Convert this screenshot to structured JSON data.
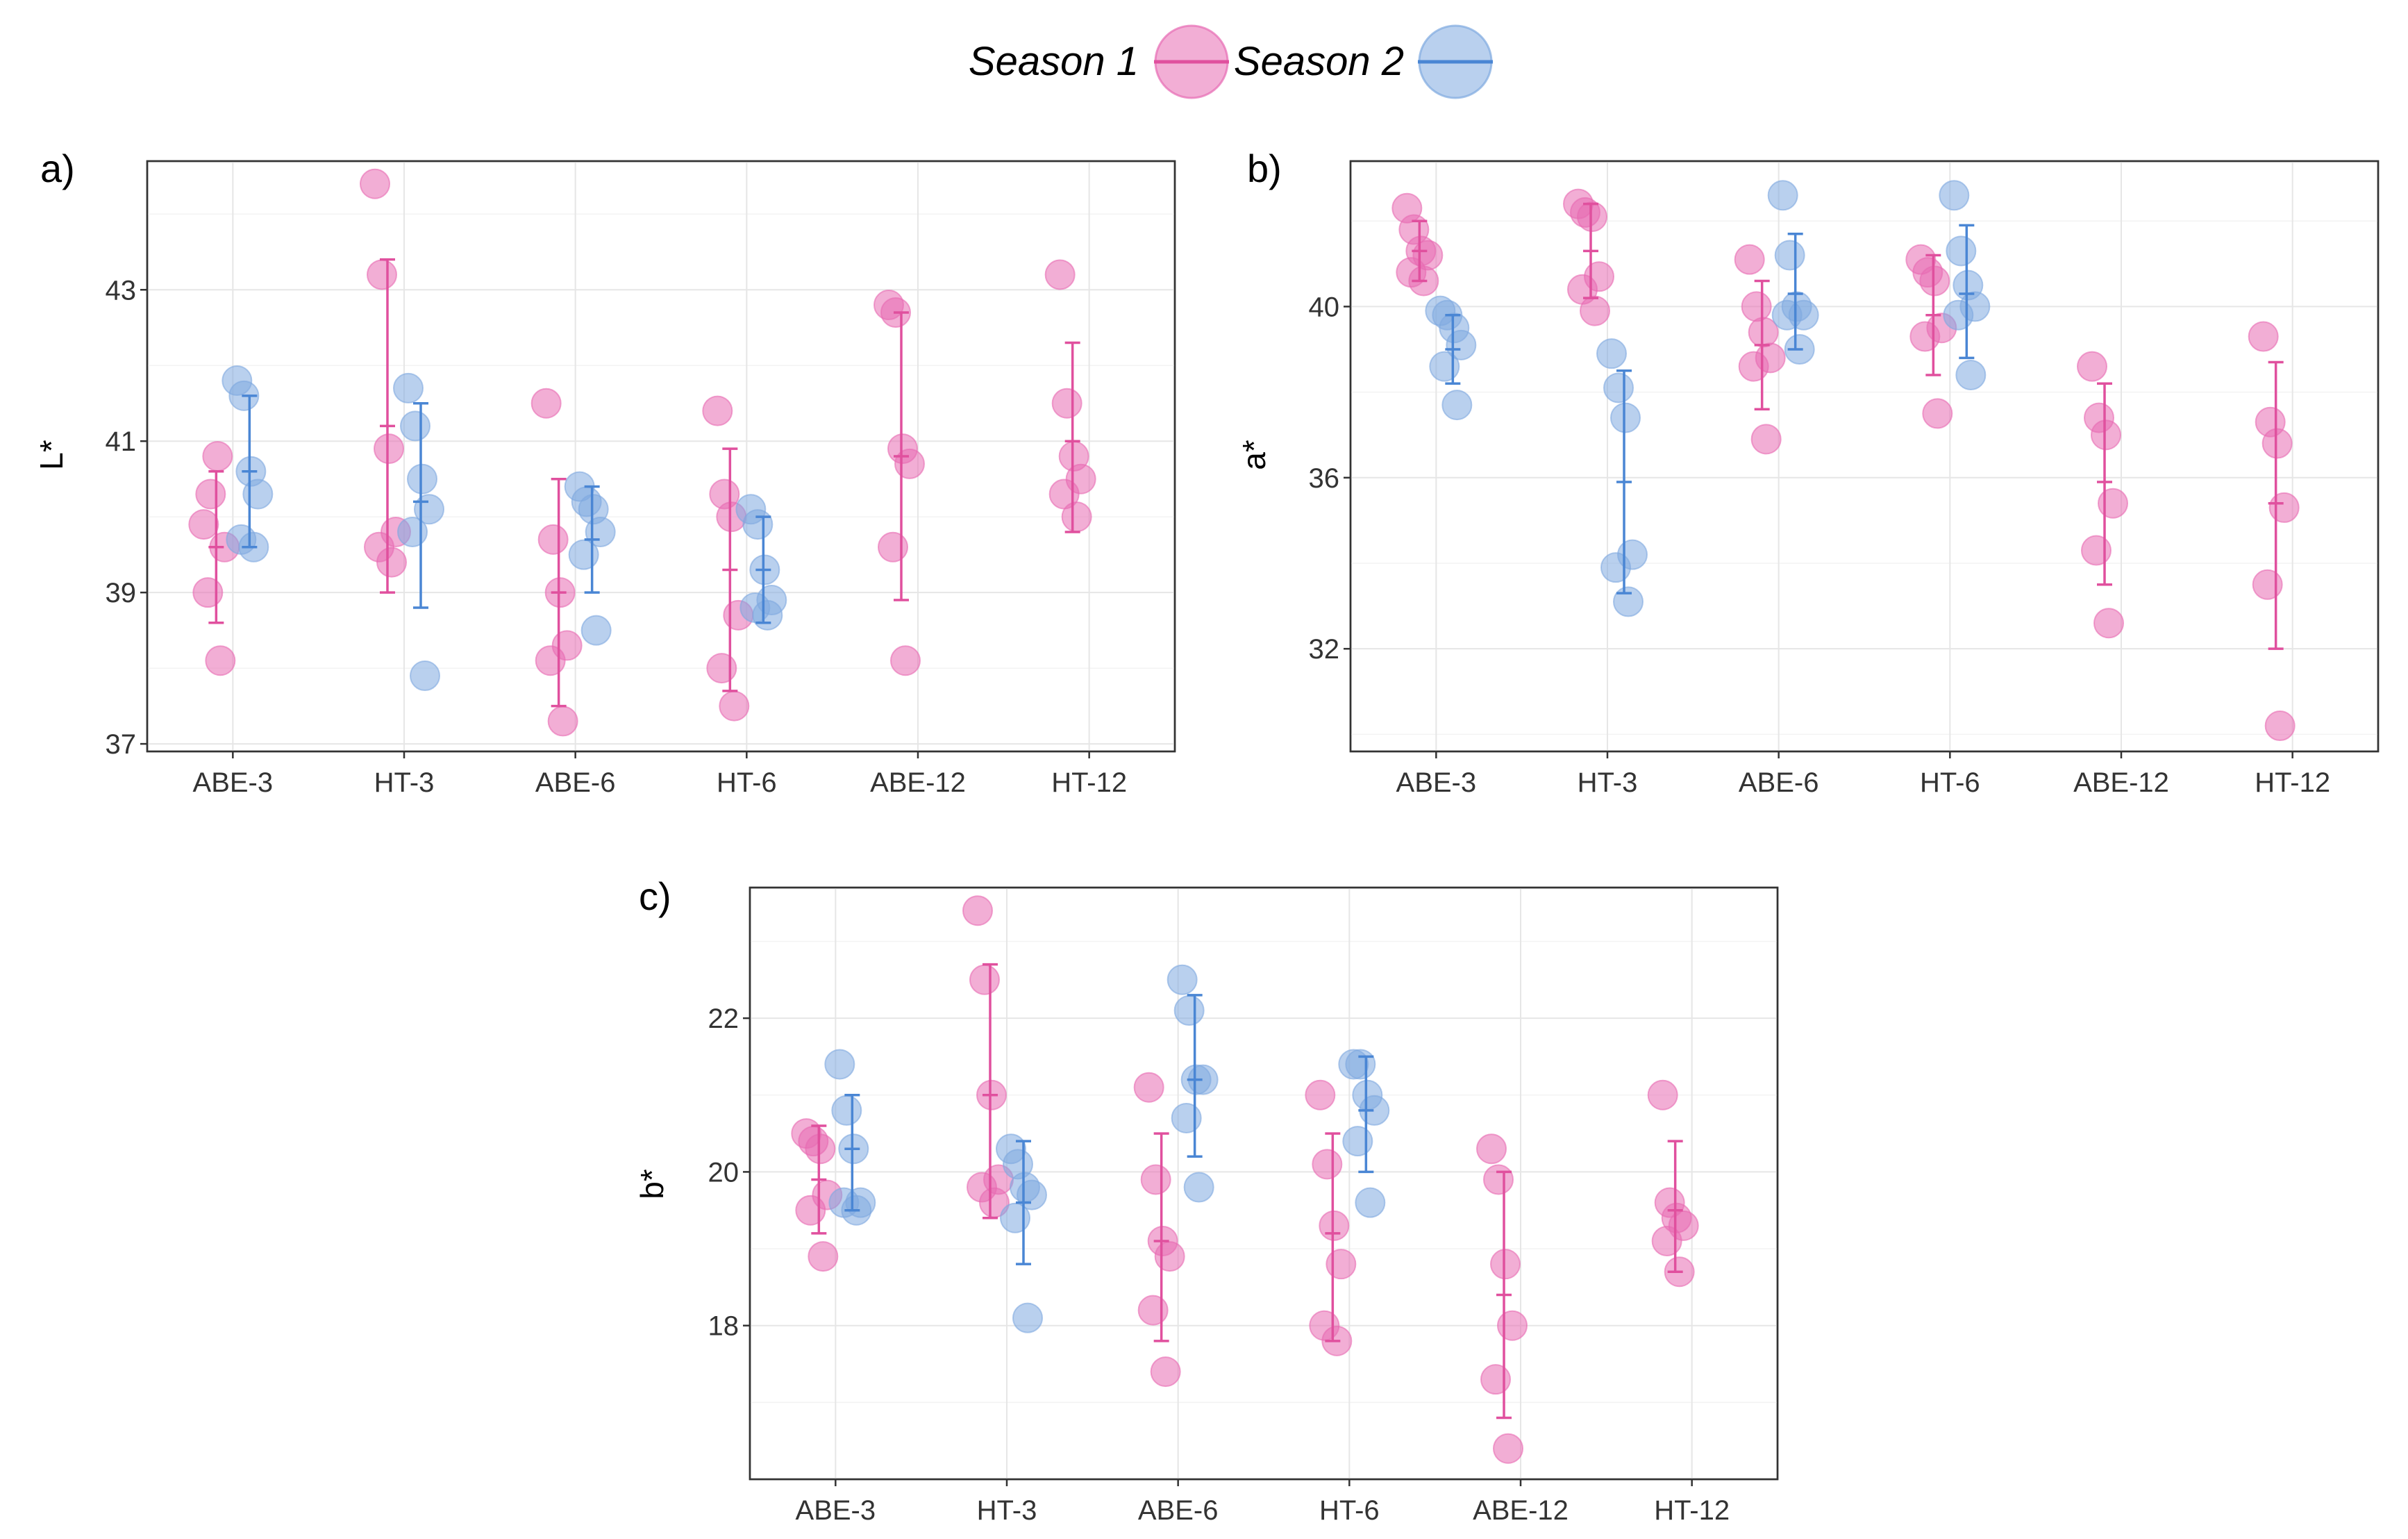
{
  "legend": {
    "items": [
      {
        "label": "Season 1",
        "color": "#e76bb3"
      },
      {
        "label": "Season 2",
        "color": "#7fa9e0"
      }
    ]
  },
  "chart_data": [
    {
      "panel": "a)",
      "type": "scatter",
      "ylabel": "L*",
      "categories": [
        "ABE-3",
        "HT-3",
        "ABE-6",
        "HT-6",
        "ABE-12",
        "HT-12"
      ],
      "ylim": [
        36.9,
        44.7
      ],
      "yticks": [
        37,
        39,
        41,
        43
      ],
      "series": [
        {
          "name": "Season 1",
          "color": "#e76bb3",
          "points": [
            [
              39.9,
              40.3,
              40.8,
              39.6,
              39.0,
              38.1
            ],
            [
              44.4,
              43.2,
              40.9,
              39.8,
              39.6,
              39.4
            ],
            [
              41.5,
              39.7,
              39.0,
              38.3,
              38.1,
              37.3
            ],
            [
              41.4,
              40.3,
              40.0,
              38.7,
              38.0,
              37.5
            ],
            [
              42.8,
              42.7,
              40.9,
              40.7,
              39.6,
              38.1
            ],
            [
              43.2,
              41.5,
              40.8,
              40.5,
              40.3,
              40.0
            ]
          ],
          "mean": [
            39.6,
            41.2,
            39.0,
            39.3,
            40.8,
            41.0
          ],
          "error": [
            [
              38.6,
              40.6
            ],
            [
              39.0,
              43.4
            ],
            [
              37.5,
              40.5
            ],
            [
              37.7,
              40.9
            ],
            [
              38.9,
              42.7
            ],
            [
              39.8,
              42.3
            ]
          ]
        },
        {
          "name": "Season 2",
          "color": "#7fa9e0",
          "points": [
            [
              41.8,
              41.6,
              40.6,
              40.3,
              39.7,
              39.6
            ],
            [
              41.7,
              41.2,
              40.5,
              40.1,
              39.8,
              37.9
            ],
            [
              40.4,
              40.2,
              40.1,
              39.8,
              39.5,
              38.5
            ],
            [
              40.1,
              39.9,
              39.3,
              38.9,
              38.8,
              38.7
            ],
            [],
            []
          ],
          "mean": [
            40.6,
            40.2,
            39.7,
            39.3,
            null,
            null
          ],
          "error": [
            [
              39.6,
              41.6
            ],
            [
              38.8,
              41.5
            ],
            [
              39.0,
              40.4
            ],
            [
              38.6,
              40.0
            ],
            null,
            null
          ]
        }
      ]
    },
    {
      "panel": "b)",
      "type": "scatter",
      "ylabel": "a*",
      "categories": [
        "ABE-3",
        "HT-3",
        "ABE-6",
        "HT-6",
        "ABE-12",
        "HT-12"
      ],
      "ylim": [
        29.6,
        43.4
      ],
      "yticks": [
        32,
        36,
        40
      ],
      "series": [
        {
          "name": "Season 1",
          "color": "#e76bb3",
          "points": [
            [
              42.3,
              41.8,
              41.3,
              41.2,
              40.8,
              40.6
            ],
            [
              42.4,
              42.2,
              42.1,
              40.7,
              40.4,
              39.9
            ],
            [
              41.1,
              40.0,
              39.4,
              38.8,
              38.6,
              36.9
            ],
            [
              41.1,
              40.8,
              40.6,
              39.5,
              39.3,
              37.5
            ],
            [
              38.6,
              37.4,
              37.0,
              35.4,
              34.3,
              32.6
            ],
            [
              39.3,
              37.3,
              36.8,
              35.3,
              33.5,
              30.2
            ]
          ],
          "mean": [
            41.3,
            41.3,
            39.1,
            39.8,
            35.9,
            35.4
          ],
          "error": [
            [
              40.6,
              42.0
            ],
            [
              40.2,
              42.4
            ],
            [
              37.6,
              40.6
            ],
            [
              38.4,
              41.2
            ],
            [
              33.5,
              38.2
            ],
            [
              32.0,
              38.7
            ]
          ]
        },
        {
          "name": "Season 2",
          "color": "#7fa9e0",
          "points": [
            [
              39.9,
              39.8,
              39.5,
              39.1,
              38.6,
              37.7
            ],
            [
              38.9,
              38.1,
              37.4,
              34.2,
              33.9,
              33.1
            ],
            [
              42.6,
              41.2,
              40.0,
              39.8,
              39.8,
              39.0
            ],
            [
              42.6,
              41.3,
              40.5,
              40.0,
              39.8,
              38.4
            ],
            [],
            []
          ],
          "mean": [
            39.0,
            35.9,
            40.3,
            40.3,
            null,
            null
          ],
          "error": [
            [
              38.2,
              39.8
            ],
            [
              33.3,
              38.5
            ],
            [
              39.0,
              41.7
            ],
            [
              38.8,
              41.9
            ],
            null,
            null
          ]
        }
      ]
    },
    {
      "panel": "c)",
      "type": "scatter",
      "ylabel": "b*",
      "categories": [
        "ABE-3",
        "HT-3",
        "ABE-6",
        "HT-6",
        "ABE-12",
        "HT-12"
      ],
      "ylim": [
        16.0,
        23.7
      ],
      "yticks": [
        18,
        20,
        22
      ],
      "series": [
        {
          "name": "Season 1",
          "color": "#e76bb3",
          "points": [
            [
              20.5,
              20.4,
              20.3,
              19.7,
              19.5,
              18.9
            ],
            [
              23.4,
              22.5,
              21.0,
              19.9,
              19.8,
              19.6
            ],
            [
              21.1,
              19.9,
              19.1,
              18.9,
              18.2,
              17.4
            ],
            [
              21.0,
              20.1,
              19.3,
              18.8,
              18.0,
              17.8
            ],
            [
              20.3,
              19.9,
              18.8,
              18.0,
              17.3,
              16.4
            ],
            [
              21.0,
              19.6,
              19.4,
              19.3,
              19.1,
              18.7
            ]
          ],
          "mean": [
            19.9,
            21.0,
            19.1,
            19.2,
            18.4,
            19.5
          ],
          "error": [
            [
              19.2,
              20.6
            ],
            [
              19.4,
              22.7
            ],
            [
              17.8,
              20.5
            ],
            [
              17.8,
              20.5
            ],
            [
              16.8,
              20.0
            ],
            [
              18.7,
              20.4
            ]
          ]
        },
        {
          "name": "Season 2",
          "color": "#7fa9e0",
          "points": [
            [
              21.4,
              20.8,
              20.3,
              19.6,
              19.6,
              19.5
            ],
            [
              20.3,
              20.1,
              19.8,
              19.7,
              19.4,
              18.1
            ],
            [
              22.5,
              22.1,
              21.2,
              21.2,
              20.7,
              19.8
            ],
            [
              21.4,
              21.4,
              21.0,
              20.8,
              20.4,
              19.6
            ],
            [],
            []
          ],
          "mean": [
            20.3,
            19.6,
            21.2,
            20.8,
            null,
            null
          ],
          "error": [
            [
              19.5,
              21.0
            ],
            [
              18.8,
              20.4
            ],
            [
              20.2,
              22.3
            ],
            [
              20.0,
              21.5
            ],
            null,
            null
          ]
        }
      ]
    }
  ]
}
